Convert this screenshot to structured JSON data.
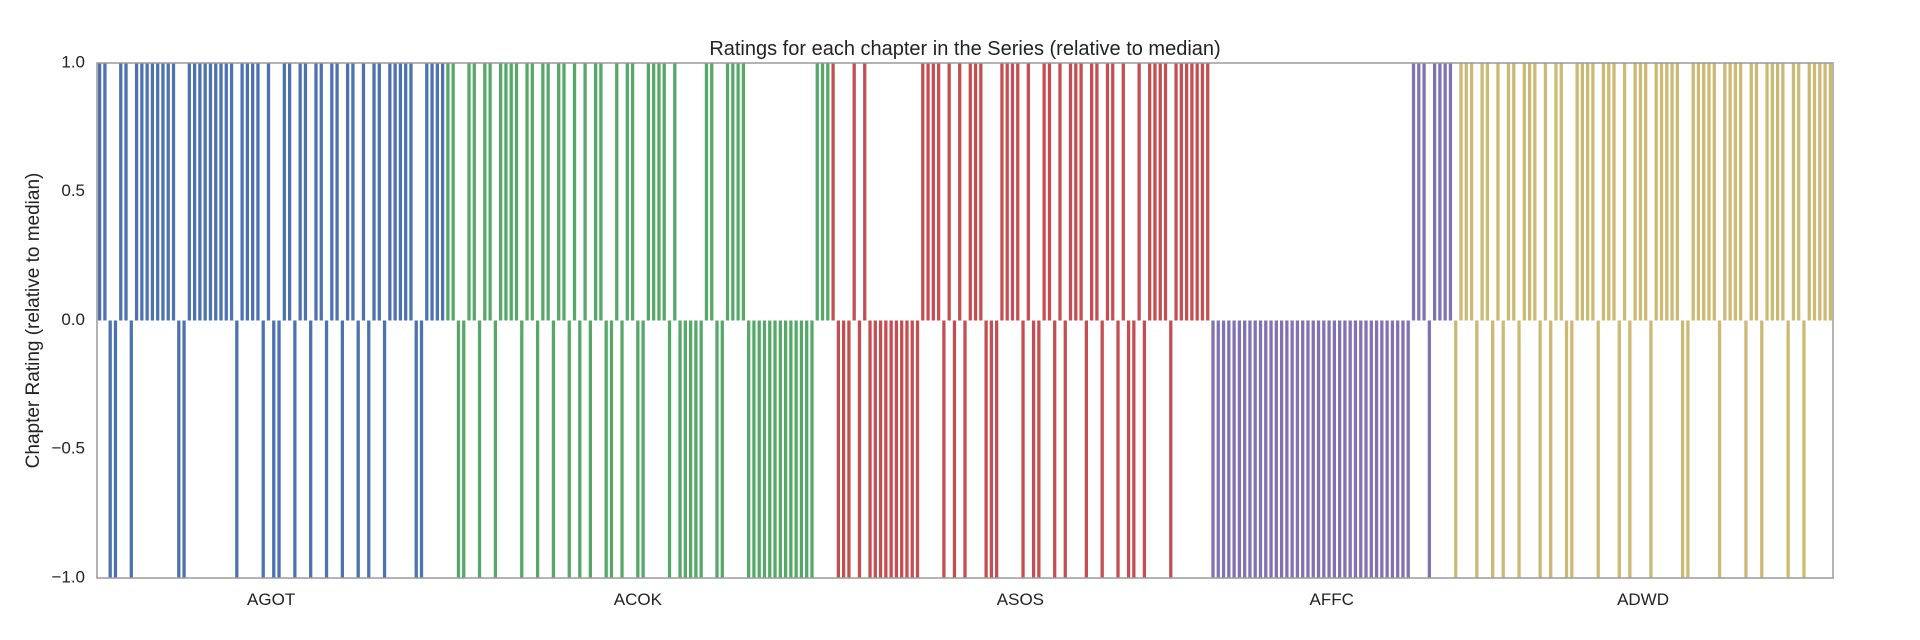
{
  "chart_data": {
    "type": "bar",
    "title": "Ratings for each chapter in the Series (relative to median)",
    "xlabel": "",
    "ylabel": "Chapter Rating (relative to median)",
    "ylim": [
      -1.0,
      1.0
    ],
    "yticks": [
      "1.0",
      "0.5",
      "0.0",
      "−0.5",
      "−1.0"
    ],
    "ytick_values": [
      1.0,
      0.5,
      0.0,
      -0.5,
      -1.0
    ],
    "grid": false,
    "books": [
      {
        "name": "AGOT",
        "color": "#4c72b0",
        "values": [
          1,
          1,
          -1,
          -1,
          1,
          1,
          -1,
          1,
          1,
          1,
          1,
          1,
          1,
          1,
          1,
          -1,
          -1,
          1,
          1,
          1,
          1,
          1,
          1,
          1,
          1,
          1,
          -1,
          1,
          1,
          1,
          1,
          -1,
          1,
          -1,
          -1,
          1,
          1,
          -1,
          1,
          1,
          -1,
          1,
          1,
          -1,
          1,
          1,
          -1,
          1,
          1,
          -1,
          1,
          -1,
          1,
          1,
          -1,
          1,
          1,
          1,
          1,
          1,
          -1,
          -1,
          1,
          1,
          1,
          1
        ]
      },
      {
        "name": "ACOK",
        "color": "#55a868",
        "values": [
          1,
          1,
          -1,
          -1,
          1,
          1,
          -1,
          1,
          1,
          -1,
          1,
          1,
          1,
          1,
          -1,
          1,
          1,
          -1,
          1,
          1,
          -1,
          1,
          1,
          -1,
          1,
          -1,
          1,
          -1,
          1,
          1,
          -1,
          -1,
          1,
          -1,
          1,
          1,
          -1,
          -1,
          1,
          1,
          1,
          1,
          -1,
          1,
          -1,
          -1,
          -1,
          -1,
          -1,
          1,
          1,
          -1,
          -1,
          1,
          1,
          1,
          1,
          -1,
          -1,
          -1,
          -1,
          -1,
          -1,
          -1,
          -1,
          -1,
          -1,
          -1,
          -1,
          -1,
          1,
          1,
          1
        ]
      },
      {
        "name": "ASOS",
        "color": "#c44e52",
        "values": [
          1,
          -1,
          -1,
          -1,
          1,
          -1,
          1,
          -1,
          -1,
          -1,
          -1,
          -1,
          -1,
          -1,
          -1,
          -1,
          -1,
          1,
          1,
          1,
          1,
          -1,
          1,
          -1,
          1,
          -1,
          1,
          1,
          1,
          -1,
          -1,
          -1,
          1,
          1,
          1,
          1,
          -1,
          1,
          -1,
          -1,
          1,
          1,
          -1,
          1,
          -1,
          1,
          1,
          1,
          -1,
          1,
          1,
          -1,
          1,
          1,
          -1,
          1,
          -1,
          -1,
          1,
          -1,
          1,
          1,
          1,
          1,
          -1,
          1,
          1,
          1,
          1,
          1,
          1,
          1
        ]
      },
      {
        "name": "AFFC",
        "color": "#8172b2",
        "values": [
          -1,
          -1,
          -1,
          -1,
          -1,
          -1,
          -1,
          -1,
          -1,
          -1,
          -1,
          -1,
          -1,
          -1,
          -1,
          -1,
          -1,
          -1,
          -1,
          -1,
          -1,
          -1,
          -1,
          -1,
          -1,
          -1,
          -1,
          -1,
          -1,
          -1,
          -1,
          -1,
          -1,
          -1,
          -1,
          -1,
          -1,
          -1,
          1,
          1,
          1,
          -1,
          1,
          1,
          1,
          1
        ]
      },
      {
        "name": "ADWD",
        "color": "#ccb974",
        "values": [
          -1,
          1,
          1,
          1,
          -1,
          1,
          1,
          -1,
          1,
          -1,
          1,
          1,
          -1,
          1,
          1,
          1,
          -1,
          1,
          -1,
          1,
          1,
          -1,
          -1,
          1,
          1,
          1,
          1,
          -1,
          1,
          1,
          1,
          -1,
          1,
          -1,
          1,
          1,
          1,
          -1,
          1,
          1,
          1,
          1,
          1,
          -1,
          -1,
          1,
          1,
          1,
          1,
          1,
          -1,
          1,
          1,
          1,
          1,
          -1,
          1,
          1,
          -1,
          1,
          1,
          1,
          1,
          -1,
          1,
          1,
          -1,
          1,
          1,
          1,
          1,
          1
        ]
      }
    ]
  }
}
